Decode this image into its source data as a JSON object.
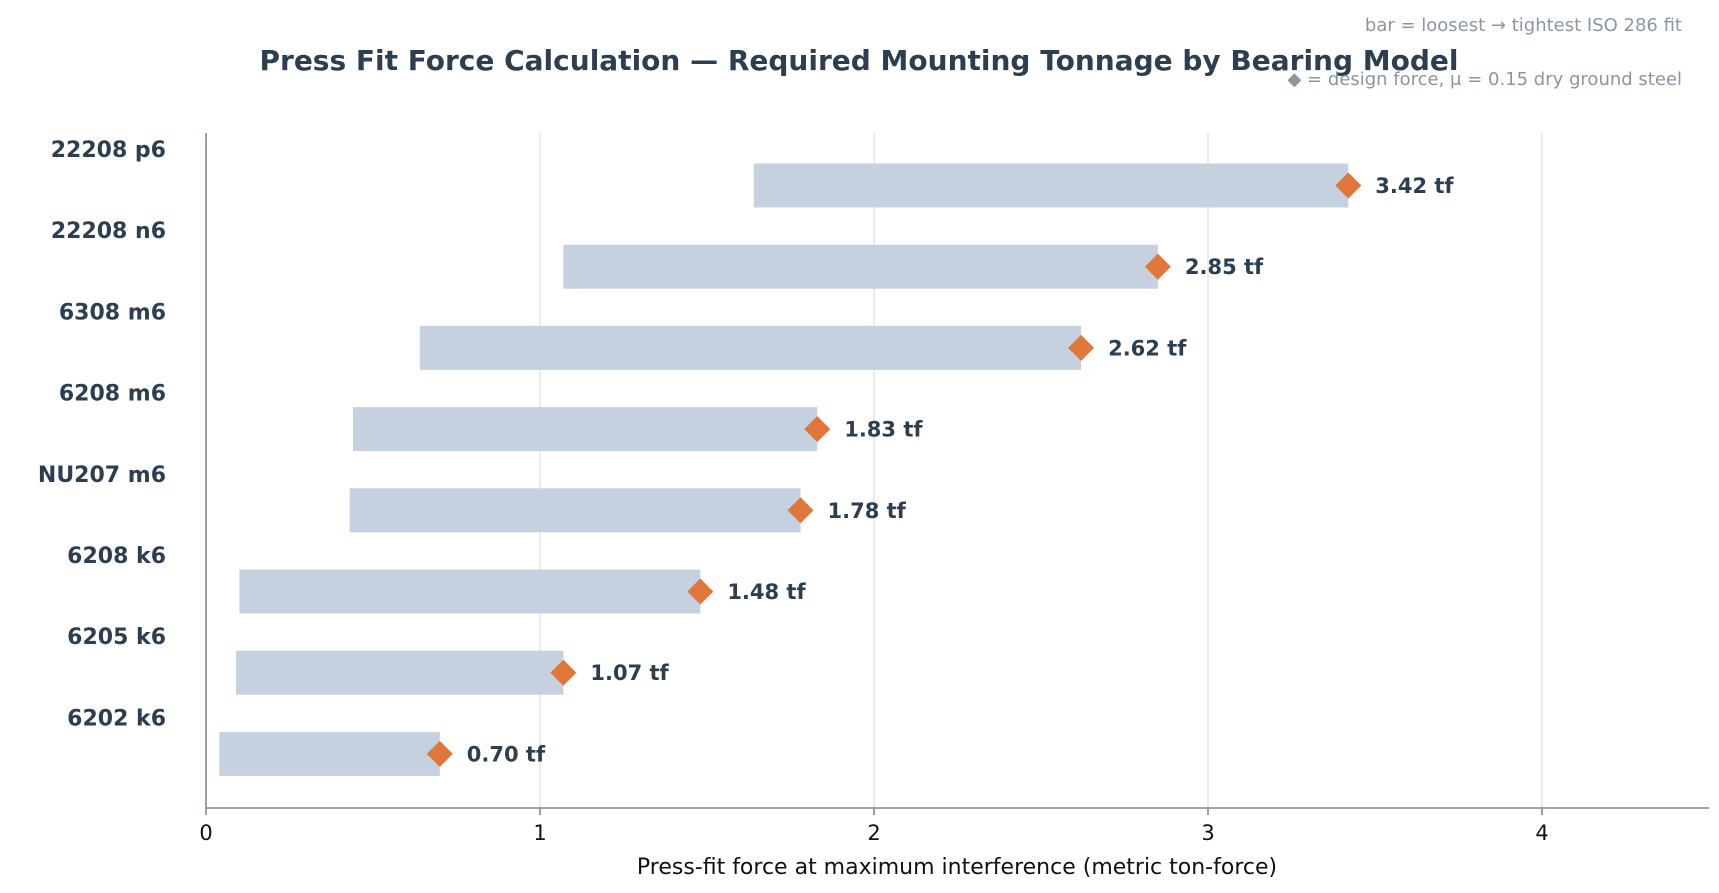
{
  "chart_data": {
    "type": "bar",
    "orientation": "horizontal",
    "title": "Press Fit Force Calculation — Required Mounting Tonnage by Bearing Model",
    "annotations": [
      "bar = loosest → tightest ISO 286 fit",
      "◆ = design force, μ = 0.15 dry ground steel"
    ],
    "xlabel": "Press-fit force at maximum interference (metric ton-force)",
    "ylabel": "",
    "xlim": [
      0,
      4.5
    ],
    "xticks": [
      "0",
      "1",
      "2",
      "3",
      "4"
    ],
    "grid": "vertical",
    "value_suffix": " tf",
    "categories": [
      "22208  p6",
      "22208  n6",
      "6308  m6",
      "6208  m6",
      "NU207  m6",
      "6208  k6",
      "6205  k6",
      "6202  k6"
    ],
    "range_min": [
      1.64,
      1.07,
      0.64,
      0.44,
      0.43,
      0.1,
      0.09,
      0.04
    ],
    "range_max": [
      3.42,
      2.85,
      2.62,
      1.83,
      1.78,
      1.48,
      1.07,
      0.7
    ],
    "design_force": [
      3.42,
      2.85,
      2.62,
      1.83,
      1.78,
      1.48,
      1.07,
      0.7
    ],
    "value_labels": [
      "3.42 tf",
      "2.85 tf",
      "2.62 tf",
      "1.83 tf",
      "1.78 tf",
      "1.48 tf",
      "1.07 tf",
      "0.70 tf"
    ],
    "colors": {
      "bar": "#c5d1de",
      "marker": "#e0763a",
      "text": "#2c3e50",
      "note": "#8a96a3"
    }
  }
}
